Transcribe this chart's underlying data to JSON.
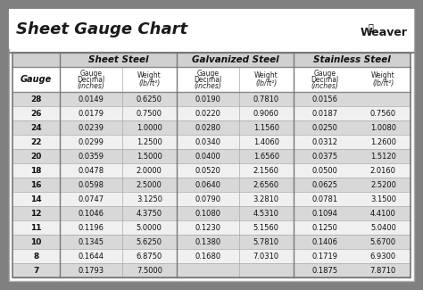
{
  "title": "Sheet Gauge Chart",
  "bg_outer": "#808080",
  "bg_inner": "#ffffff",
  "header_bg": "#d0d0d0",
  "subheader_bg": "#ffffff",
  "row_odd_bg": "#d8d8d8",
  "row_even_bg": "#f0f0f0",
  "border_color": "#555555",
  "line_color": "#999999",
  "gauges": [
    28,
    26,
    24,
    22,
    20,
    18,
    16,
    14,
    12,
    11,
    10,
    8,
    7
  ],
  "sheet_steel": {
    "label": "Sheet Steel",
    "decimal": [
      "0.0149",
      "0.0179",
      "0.0239",
      "0.0299",
      "0.0359",
      "0.0478",
      "0.0598",
      "0.0747",
      "0.1046",
      "0.1196",
      "0.1345",
      "0.1644",
      "0.1793"
    ],
    "weight": [
      "0.6250",
      "0.7500",
      "1.0000",
      "1.2500",
      "1.5000",
      "2.0000",
      "2.5000",
      "3.1250",
      "4.3750",
      "5.0000",
      "5.6250",
      "6.8750",
      "7.5000"
    ]
  },
  "galvanized_steel": {
    "label": "Galvanized Steel",
    "decimal": [
      "0.0190",
      "0.0220",
      "0.0280",
      "0.0340",
      "0.0400",
      "0.0520",
      "0.0640",
      "0.0790",
      "0.1080",
      "0.1230",
      "0.1380",
      "0.1680",
      ""
    ],
    "weight": [
      "0.7810",
      "0.9060",
      "1.1560",
      "1.4060",
      "1.6560",
      "2.1560",
      "2.6560",
      "3.2810",
      "4.5310",
      "5.1560",
      "5.7810",
      "7.0310",
      ""
    ]
  },
  "stainless_steel": {
    "label": "Stainless Steel",
    "decimal": [
      "0.0156",
      "0.0187",
      "0.0250",
      "0.0312",
      "0.0375",
      "0.0500",
      "0.0625",
      "0.0781",
      "0.1094",
      "0.1250",
      "0.1406",
      "0.1719",
      "0.1875"
    ],
    "weight": [
      "",
      "0.7560",
      "1.0080",
      "1.2600",
      "1.5120",
      "2.0160",
      "2.5200",
      "3.1500",
      "4.4100",
      "5.0400",
      "5.6700",
      "6.9300",
      "7.8710"
    ]
  }
}
